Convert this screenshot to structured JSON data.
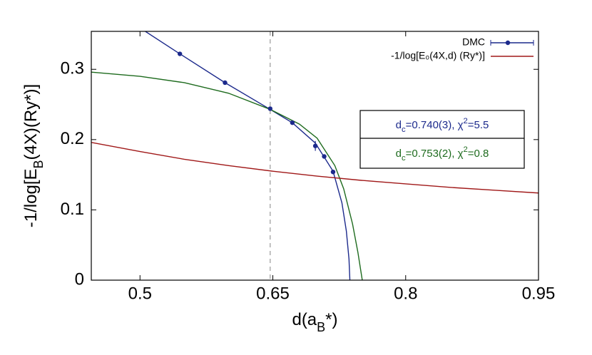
{
  "chart_data": {
    "type": "scatter",
    "xlabel": [
      "d(a",
      {
        "sub": "B"
      },
      "*)"
    ],
    "ylabel": [
      "-1/log[E",
      {
        "sub": "B"
      },
      "(4X)(Ry*)]"
    ],
    "xlim": [
      0.445,
      0.95
    ],
    "ylim": [
      0,
      0.354
    ],
    "xticks": [
      0.5,
      0.65,
      0.8,
      0.95
    ],
    "yticks": [
      0,
      0.1,
      0.2,
      0.3
    ],
    "vline": 0.647,
    "series": [
      {
        "name": "DMC",
        "color": "#1c2a8c",
        "x": [
          0.545,
          0.596,
          0.647,
          0.672,
          0.698,
          0.708,
          0.718
        ],
        "values": [
          0.322,
          0.281,
          0.244,
          0.224,
          0.191,
          0.176,
          0.154
        ],
        "errors": [
          0.002,
          0.002,
          0.002,
          0.002,
          0.007,
          0.003,
          0.003
        ]
      },
      {
        "name": "-1/log[E₀(4X,d) (Ry*)]",
        "color": "#a01818",
        "x": [
          0.445,
          0.5,
          0.55,
          0.6,
          0.65,
          0.7,
          0.75,
          0.8,
          0.85,
          0.9,
          0.95
        ],
        "values": [
          0.196,
          0.183,
          0.172,
          0.163,
          0.155,
          0.148,
          0.142,
          0.137,
          0.132,
          0.128,
          0.124
        ]
      }
    ],
    "fits": [
      {
        "color": "#1c2a8c",
        "x": [
          0.506,
          0.545,
          0.596,
          0.647,
          0.672,
          0.698,
          0.718,
          0.728,
          0.733,
          0.736,
          0.737
        ],
        "values": [
          0.354,
          0.322,
          0.281,
          0.243,
          0.224,
          0.195,
          0.155,
          0.11,
          0.07,
          0.03,
          0
        ]
      },
      {
        "color": "#1e6b1e",
        "x": [
          0.445,
          0.5,
          0.55,
          0.6,
          0.647,
          0.68,
          0.7,
          0.72,
          0.73,
          0.74,
          0.746,
          0.751
        ],
        "values": [
          0.296,
          0.29,
          0.281,
          0.266,
          0.243,
          0.222,
          0.202,
          0.163,
          0.13,
          0.08,
          0.04,
          0
        ]
      }
    ],
    "annotations": [
      {
        "color": "#1c2a8c",
        "parts": [
          "d",
          {
            "sub": "c"
          },
          "=0.740(3), χ",
          {
            "sup": "2"
          },
          "=5.5"
        ]
      },
      {
        "color": "#1e6b1e",
        "parts": [
          "d",
          {
            "sub": "c"
          },
          "=0.753(2), χ",
          {
            "sup": "2"
          },
          "=0.8"
        ]
      }
    ]
  }
}
